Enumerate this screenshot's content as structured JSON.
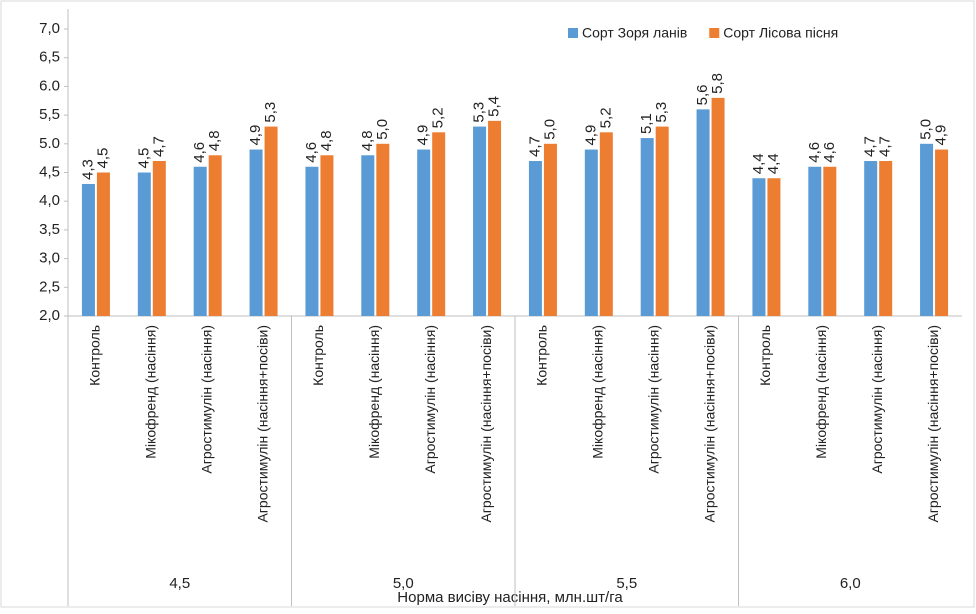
{
  "chart_data": {
    "type": "bar",
    "x_label": "Норма висіву насіння, млн.шт/га",
    "groups": [
      "4,5",
      "5,0",
      "5,5",
      "6,0"
    ],
    "categories": [
      "Контроль",
      "Мікофренд (насіння)",
      "Агростимулін (насіння)",
      "Агростимулін (насіння+посіви)",
      "Контроль",
      "Мікофренд (насіння)",
      "Агростимулін (насіння)",
      "Агростимулін (насіння+посіви)",
      "Контроль",
      "Мікофренд (насіння)",
      "Агростимулін (насіння)",
      "Агростимулін (насіння+посіви)",
      "Контроль",
      "Мікофренд (насіння)",
      "Агростимулін (насіння)",
      "Агростимулін (насіння+посіви)"
    ],
    "series": [
      {
        "name": "Сорт Зоря ланів",
        "color": "#5b9bd5",
        "values": [
          4.3,
          4.5,
          4.6,
          4.9,
          4.6,
          4.8,
          4.9,
          5.3,
          4.7,
          4.9,
          5.1,
          5.6,
          4.4,
          4.6,
          4.7,
          5.0
        ],
        "value_labels": [
          "4,3",
          "4,5",
          "4,6",
          "4,9",
          "4,6",
          "4,8",
          "4,9",
          "5,3",
          "4,7",
          "4,9",
          "5,1",
          "5,6",
          "4,4",
          "4,6",
          "4,7",
          "5,0"
        ]
      },
      {
        "name": "Сорт Лісова пісня",
        "color": "#ed7d31",
        "values": [
          4.5,
          4.7,
          4.8,
          5.3,
          4.8,
          5.0,
          5.2,
          5.4,
          5.0,
          5.2,
          5.3,
          5.8,
          4.4,
          4.6,
          4.7,
          4.9
        ],
        "value_labels": [
          "4,5",
          "4,7",
          "4,8",
          "5,3",
          "4,8",
          "5,0",
          "5,2",
          "5,4",
          "5,0",
          "5,2",
          "5,3",
          "5,8",
          "4,4",
          "4,6",
          "4,7",
          "4,9"
        ]
      }
    ],
    "ylim": [
      2.0,
      7.0
    ],
    "yticks": [
      {
        "value": 2.0,
        "label": "2,0"
      },
      {
        "value": 2.5,
        "label": "2,5"
      },
      {
        "value": 3.0,
        "label": "3,0"
      },
      {
        "value": 3.5,
        "label": "3,5"
      },
      {
        "value": 4.0,
        "label": "4,0"
      },
      {
        "value": 4.5,
        "label": "4,5"
      },
      {
        "value": 5.0,
        "label": "5.0"
      },
      {
        "value": 5.5,
        "label": "5,5"
      },
      {
        "value": 6.0,
        "label": "6.0"
      },
      {
        "value": 6.5,
        "label": "6,5"
      },
      {
        "value": 7.0,
        "label": "7,0"
      }
    ],
    "grid": false,
    "legend": "top-right"
  }
}
